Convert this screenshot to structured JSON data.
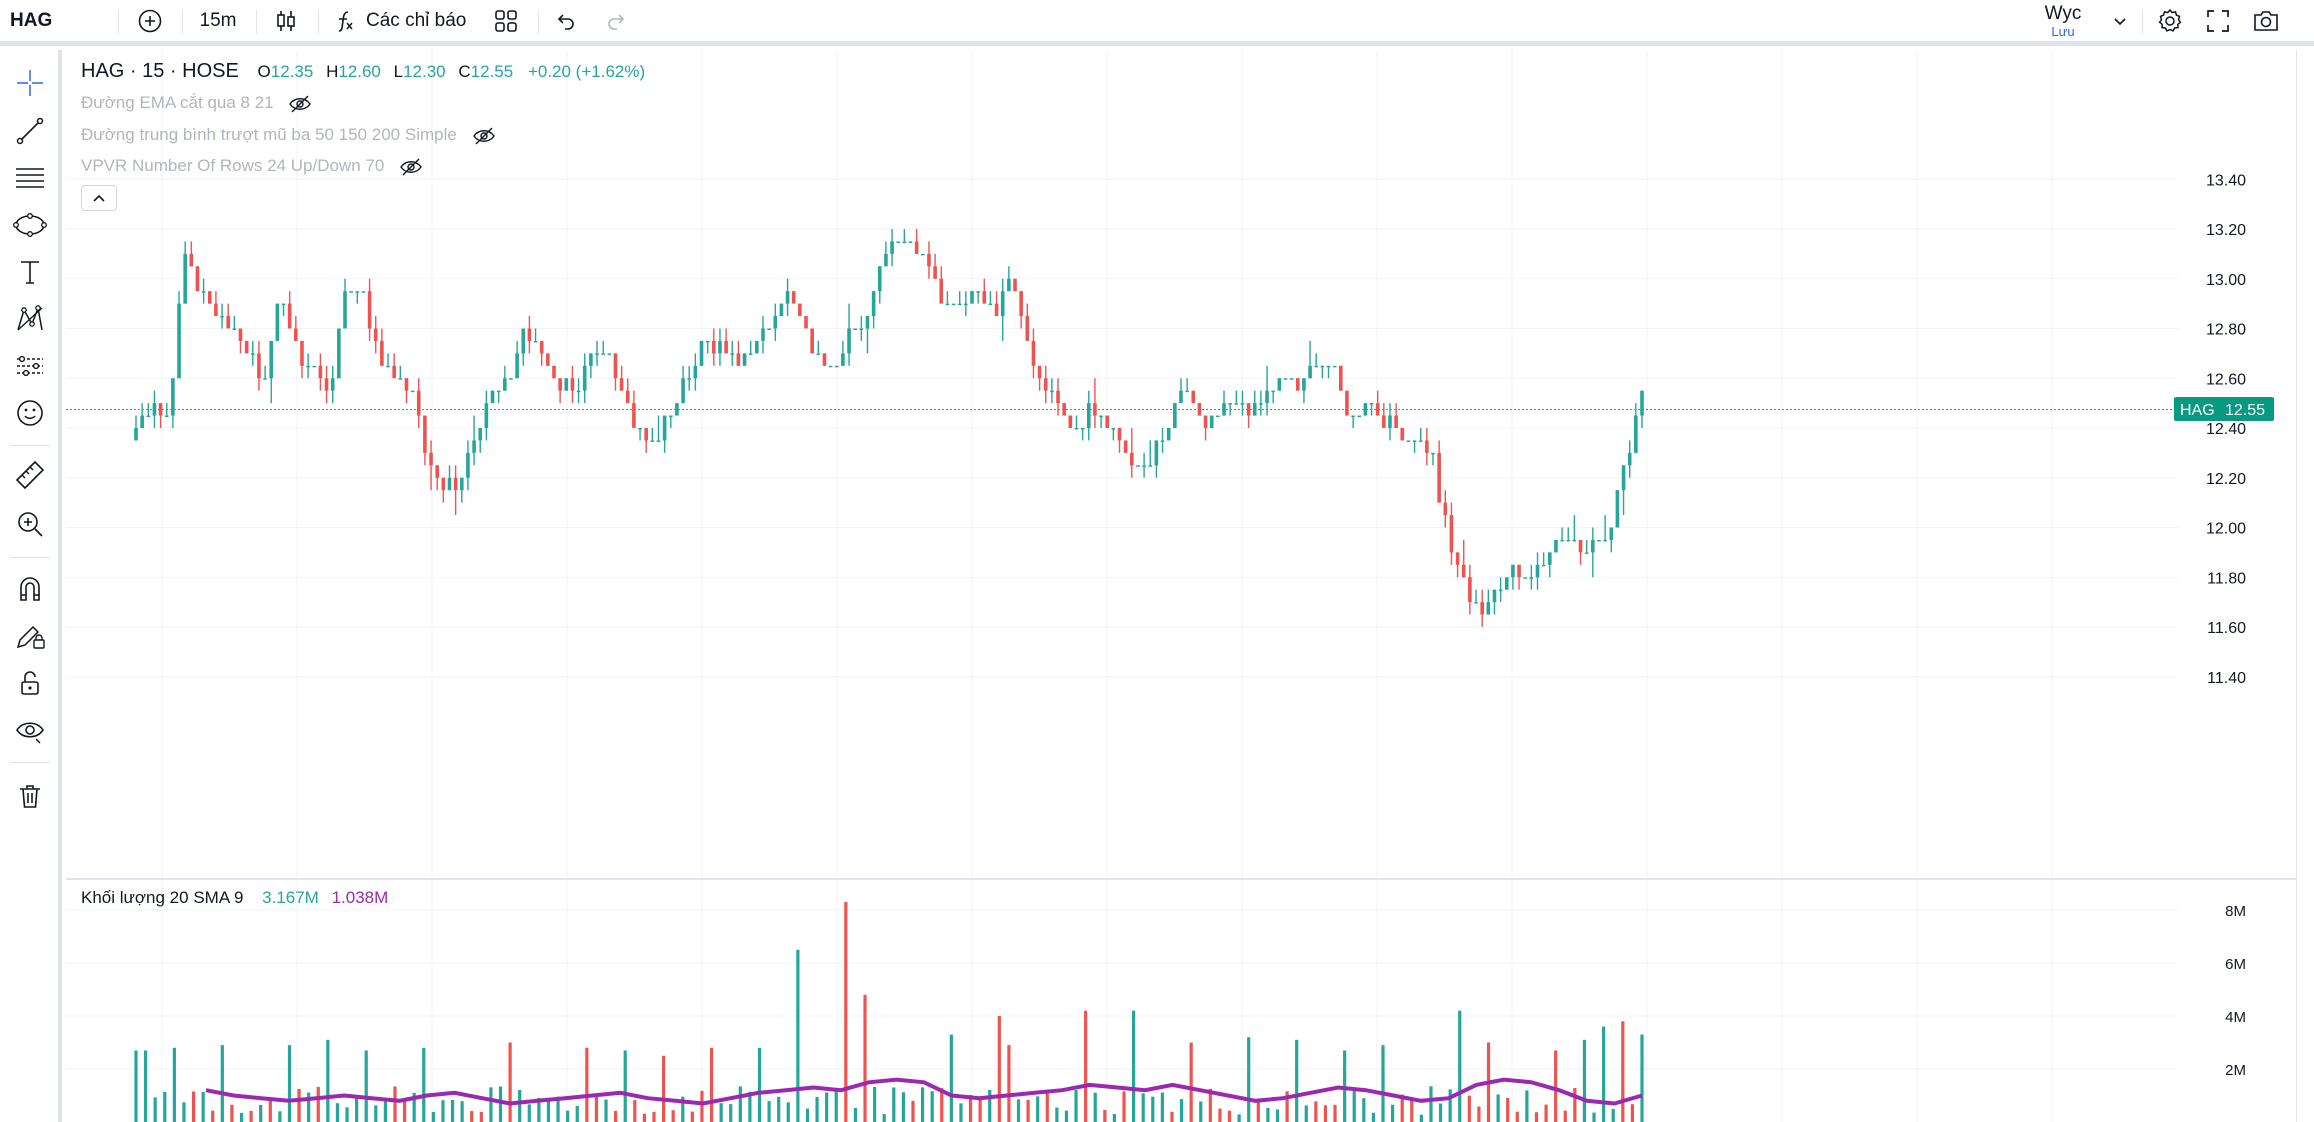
{
  "toolbar": {
    "symbol": "HAG",
    "interval": "15m",
    "indicators_label": "Các chỉ báo",
    "layout_name": "Wyc",
    "save_label": "Lưu"
  },
  "legend": {
    "title": "HAG · 15 · HOSE",
    "o_label": "O",
    "o_value": "12.35",
    "h_label": "H",
    "h_value": "12.60",
    "l_label": "L",
    "l_value": "12.30",
    "c_label": "C",
    "c_value": "12.55",
    "change": "+0.20 (+1.62%)",
    "indicators": [
      "Đường EMA cắt qua 8 21",
      "Đường trung bình trượt mũ ba 50 150 200 Simple",
      "VPVR Number Of Rows 24 Up/Down 70"
    ]
  },
  "volume_legend": {
    "title": "Khối lượng 20 SMA 9",
    "volume_value": "3.167M",
    "sma_value": "1.038M"
  },
  "price_label": {
    "symbol": "HAG",
    "price": "12.55"
  },
  "colors": {
    "up": "#26a69a",
    "down": "#ef5350",
    "sma": "#9c27b0",
    "accent": "#2962ff"
  },
  "chart_data": [
    {
      "type": "candlestick",
      "symbol": "HAG",
      "interval": "15",
      "price_axis": [
        "13.40",
        "13.20",
        "13.00",
        "12.80",
        "12.60",
        "12.40",
        "12.20",
        "12.00",
        "11.80",
        "11.60",
        "11.40"
      ],
      "last_price": 12.55,
      "path": [
        12.4,
        12.5,
        12.45,
        13.1,
        12.95,
        12.85,
        12.8,
        12.7,
        12.6,
        12.95,
        12.7,
        12.65,
        12.55,
        13.0,
        12.95,
        12.7,
        12.6,
        12.55,
        12.3,
        12.15,
        12.2,
        12.4,
        12.55,
        12.55,
        12.8,
        12.7,
        12.6,
        12.55,
        12.65,
        12.7,
        12.55,
        12.4,
        12.35,
        12.45,
        12.6,
        12.75,
        12.7,
        12.65,
        12.7,
        12.8,
        12.95,
        12.85,
        12.7,
        12.65,
        12.8,
        12.8,
        13.1,
        13.2,
        13.15,
        13.05,
        12.9,
        12.9,
        12.95,
        12.85,
        13.0,
        12.75,
        12.6,
        12.5,
        12.4,
        12.5,
        12.4,
        12.3,
        12.2,
        12.3,
        12.45,
        12.55,
        12.4,
        12.45,
        12.5,
        12.45,
        12.55,
        12.6,
        12.55,
        12.7,
        12.6,
        12.45,
        12.5,
        12.45,
        12.4,
        12.35,
        12.3,
        11.95,
        11.8,
        11.65,
        11.75,
        11.85,
        11.8,
        11.9,
        11.95,
        11.9,
        11.95,
        12.0,
        12.25,
        12.55
      ]
    },
    {
      "type": "bar",
      "title": "Khối lượng 20 SMA 9",
      "volume_axis": [
        "8M",
        "6M",
        "4M",
        "2M"
      ],
      "ylim": [
        0,
        8.5
      ],
      "peaks": [
        [
          0.5,
          2.7
        ],
        [
          4,
          2.8
        ],
        [
          9,
          2.9
        ],
        [
          16,
          2.9
        ],
        [
          20,
          3.1
        ],
        [
          24,
          2.7
        ],
        [
          30,
          2.8
        ],
        [
          39,
          3.0
        ],
        [
          47,
          2.8
        ],
        [
          51,
          2.7
        ],
        [
          55,
          2.5
        ],
        [
          60,
          2.8
        ],
        [
          65,
          2.8
        ],
        [
          69,
          6.5
        ],
        [
          74,
          8.3
        ],
        [
          76,
          4.8
        ],
        [
          85,
          3.3
        ],
        [
          90,
          4.0
        ],
        [
          91,
          2.9
        ],
        [
          99,
          4.2
        ],
        [
          104,
          4.2
        ],
        [
          110,
          3.0
        ],
        [
          116,
          3.2
        ],
        [
          121,
          3.1
        ],
        [
          126,
          2.7
        ],
        [
          130,
          2.9
        ],
        [
          138,
          4.2
        ],
        [
          141,
          3.0
        ],
        [
          148,
          2.7
        ],
        [
          151,
          3.1
        ],
        [
          153,
          3.6
        ],
        [
          155,
          3.8
        ],
        [
          157,
          3.3
        ]
      ],
      "sma_values": [
        1.2,
        1.0,
        0.9,
        0.8,
        0.9,
        1.0,
        0.9,
        0.8,
        1.0,
        1.1,
        0.9,
        0.7,
        0.8,
        0.9,
        1.0,
        1.1,
        0.9,
        0.8,
        0.7,
        0.9,
        1.1,
        1.2,
        1.3,
        1.2,
        1.5,
        1.6,
        1.5,
        1.0,
        0.9,
        1.0,
        1.1,
        1.2,
        1.4,
        1.3,
        1.2,
        1.4,
        1.2,
        1.0,
        0.8,
        0.9,
        1.1,
        1.3,
        1.2,
        1.0,
        0.8,
        0.9,
        1.4,
        1.6,
        1.5,
        1.2,
        0.8,
        0.7,
        1.0
      ]
    }
  ]
}
